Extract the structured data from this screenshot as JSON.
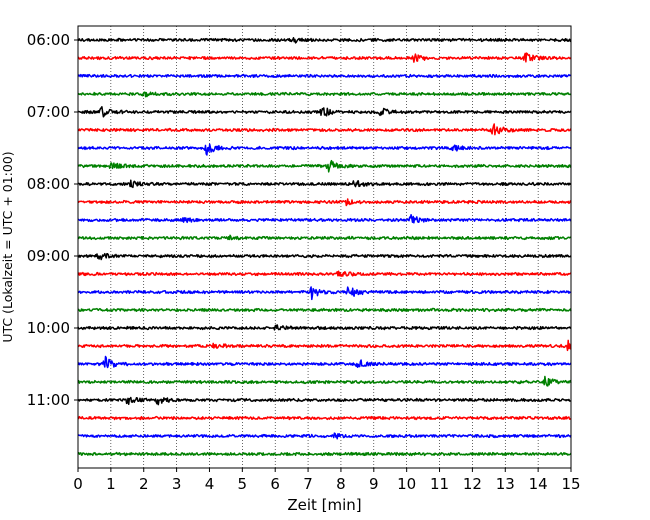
{
  "chart_data": {
    "type": "line",
    "title": "",
    "xlabel": "Zeit  [min]",
    "ylabel": "UTC (Lokalzeit = UTC + 01:00)",
    "xlim": [
      0,
      15
    ],
    "x_ticks": [
      0,
      1,
      2,
      3,
      4,
      5,
      6,
      7,
      8,
      9,
      10,
      11,
      12,
      13,
      14,
      15
    ],
    "x_grid": true,
    "y_ticks": [
      "06:00",
      "07:00",
      "08:00",
      "09:00",
      "10:00",
      "11:00"
    ],
    "trace_interval_min": 15,
    "trace_colors": [
      "#000000",
      "#ff0000",
      "#0000ff",
      "#008000"
    ],
    "series": [
      {
        "start": "06:00",
        "color": "#000000",
        "events": [
          {
            "t": 6.5,
            "amp": 0.4
          }
        ]
      },
      {
        "start": "06:15",
        "color": "#ff0000",
        "events": [
          {
            "t": 10.2,
            "amp": 0.5
          },
          {
            "t": 13.6,
            "amp": 0.6
          }
        ]
      },
      {
        "start": "06:30",
        "color": "#0000ff",
        "events": []
      },
      {
        "start": "06:45",
        "color": "#008000",
        "events": [
          {
            "t": 2.0,
            "amp": 0.3
          }
        ]
      },
      {
        "start": "07:00",
        "color": "#000000",
        "events": [
          {
            "t": 0.7,
            "amp": 0.6
          },
          {
            "t": 7.4,
            "amp": 0.7
          },
          {
            "t": 9.2,
            "amp": 0.5
          }
        ]
      },
      {
        "start": "07:15",
        "color": "#ff0000",
        "events": [
          {
            "t": 12.6,
            "amp": 0.9
          }
        ]
      },
      {
        "start": "07:30",
        "color": "#0000ff",
        "events": [
          {
            "t": 3.9,
            "amp": 1.0
          },
          {
            "t": 11.4,
            "amp": 0.4
          }
        ]
      },
      {
        "start": "07:45",
        "color": "#008000",
        "events": [
          {
            "t": 1.0,
            "amp": 0.5
          },
          {
            "t": 7.6,
            "amp": 0.9
          }
        ]
      },
      {
        "start": "08:00",
        "color": "#000000",
        "events": [
          {
            "t": 1.6,
            "amp": 0.4
          },
          {
            "t": 8.4,
            "amp": 0.5
          }
        ]
      },
      {
        "start": "08:15",
        "color": "#ff0000",
        "events": [
          {
            "t": 8.1,
            "amp": 0.4
          }
        ]
      },
      {
        "start": "08:30",
        "color": "#0000ff",
        "events": [
          {
            "t": 3.2,
            "amp": 0.3
          },
          {
            "t": 10.1,
            "amp": 0.7
          }
        ]
      },
      {
        "start": "08:45",
        "color": "#008000",
        "events": [
          {
            "t": 4.5,
            "amp": 0.3
          }
        ]
      },
      {
        "start": "09:00",
        "color": "#000000",
        "events": [
          {
            "t": 0.6,
            "amp": 0.5
          }
        ]
      },
      {
        "start": "09:15",
        "color": "#ff0000",
        "events": [
          {
            "t": 7.9,
            "amp": 0.4
          }
        ]
      },
      {
        "start": "09:30",
        "color": "#0000ff",
        "events": [
          {
            "t": 7.1,
            "amp": 0.8
          },
          {
            "t": 8.2,
            "amp": 1.0
          }
        ]
      },
      {
        "start": "09:45",
        "color": "#008000",
        "events": []
      },
      {
        "start": "10:00",
        "color": "#000000",
        "events": [
          {
            "t": 6.0,
            "amp": 0.3
          }
        ]
      },
      {
        "start": "10:15",
        "color": "#ff0000",
        "events": [
          {
            "t": 4.1,
            "amp": 0.4
          },
          {
            "t": 14.9,
            "amp": 0.6
          }
        ]
      },
      {
        "start": "10:30",
        "color": "#0000ff",
        "events": [
          {
            "t": 0.8,
            "amp": 1.0
          },
          {
            "t": 8.5,
            "amp": 0.6
          }
        ]
      },
      {
        "start": "10:45",
        "color": "#008000",
        "events": [
          {
            "t": 14.2,
            "amp": 0.7
          }
        ]
      },
      {
        "start": "11:00",
        "color": "#000000",
        "events": [
          {
            "t": 1.5,
            "amp": 0.5
          },
          {
            "t": 2.4,
            "amp": 0.5
          }
        ]
      },
      {
        "start": "11:15",
        "color": "#ff0000",
        "events": []
      },
      {
        "start": "11:30",
        "color": "#0000ff",
        "events": [
          {
            "t": 7.7,
            "amp": 0.5
          }
        ]
      },
      {
        "start": "11:45",
        "color": "#008000",
        "events": []
      }
    ]
  }
}
